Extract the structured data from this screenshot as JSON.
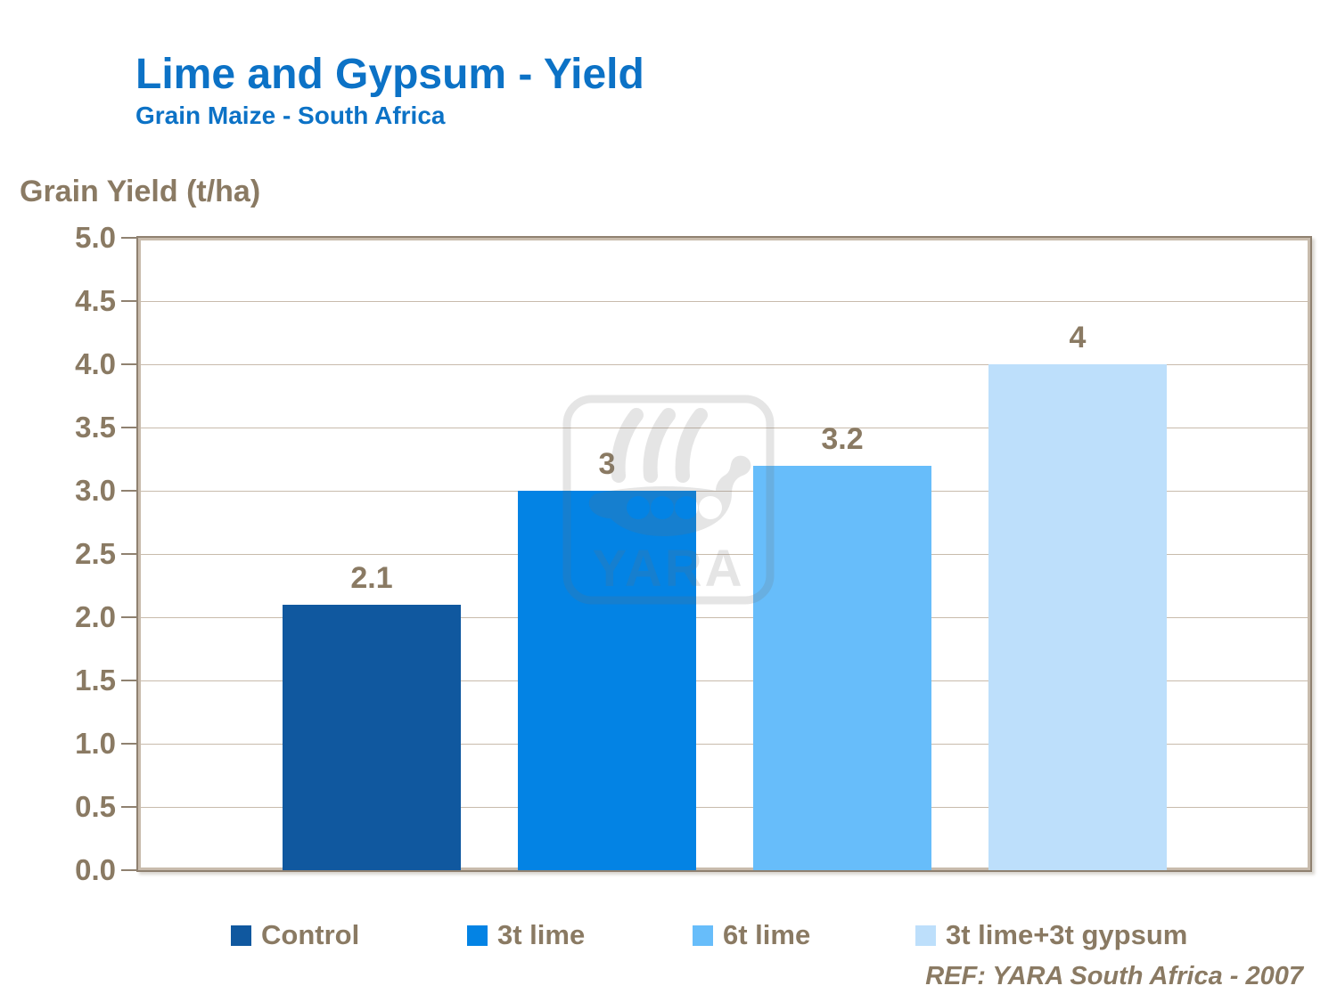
{
  "title": "Lime and Gypsum - Yield",
  "subtitle": "Grain Maize - South Africa",
  "axis_title": "Grain Yield (t/ha)",
  "footer_ref": "REF: YARA South Africa - 2007",
  "watermark": {
    "text": "YARA",
    "icon": "viking-ship"
  },
  "colors": {
    "title_blue": "#0C72C6",
    "text_brown": "#8A7A63",
    "gridline": "#C8BBAC",
    "axis_border": "#8F8170"
  },
  "chart_data": {
    "type": "bar",
    "title": "Lime and Gypsum - Yield",
    "subtitle": "Grain Maize - South Africa",
    "xlabel": "",
    "ylabel": "Grain Yield (t/ha)",
    "categories": [
      "Control",
      "3t lime",
      "6t lime",
      "3t lime+3t gypsum"
    ],
    "values": [
      2.1,
      3,
      3.2,
      4
    ],
    "bar_labels": [
      "2.1",
      "3",
      "3.2",
      "4"
    ],
    "series_colors": [
      "#10589F",
      "#0383E4",
      "#67BDFA",
      "#BDDFFB"
    ],
    "ylim": [
      0,
      5
    ],
    "ytick_step": 0.5,
    "yticks": [
      "0.0",
      "0.5",
      "1.0",
      "1.5",
      "2.0",
      "2.5",
      "3.0",
      "3.5",
      "4.0",
      "4.5",
      "5.0"
    ],
    "grid": true,
    "legend_position": "bottom",
    "annotation": "REF: YARA South Africa - 2007"
  }
}
